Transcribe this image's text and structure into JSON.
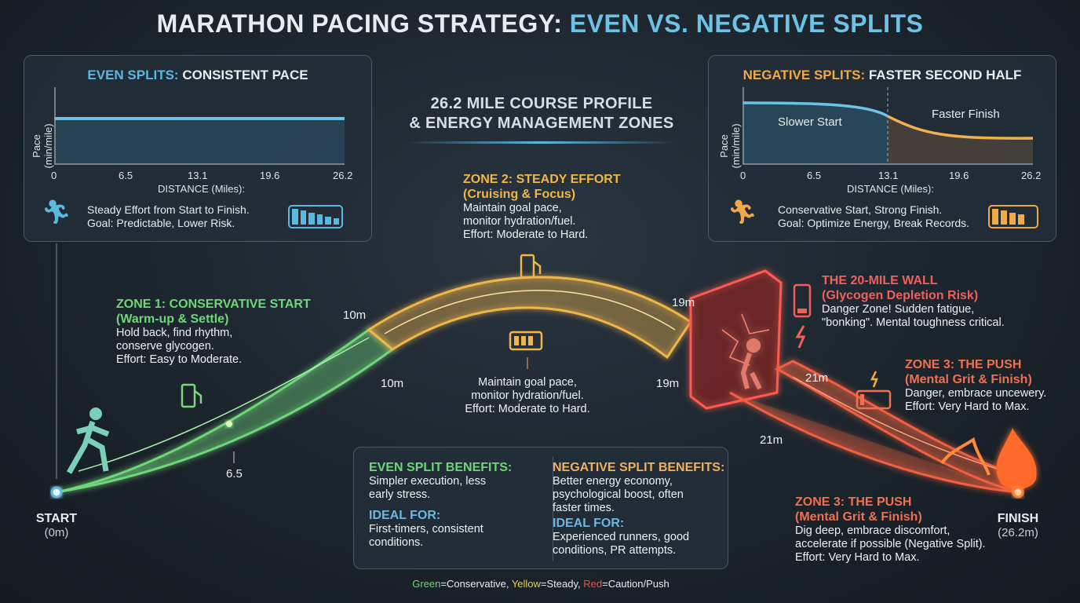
{
  "title": {
    "part1": "MARATHON PACING STRATEGY: ",
    "part2": "EVEN VS. NEGATIVE SPLITS"
  },
  "subtitle": {
    "line1": "26.2 MILE COURSE PROFILE",
    "line2": "& ENERGY MANAGEMENT ZONES"
  },
  "even_panel": {
    "title_accent": "EVEN SPLITS:",
    "title_rest": " CONSISTENT PACE",
    "ylabel": "Pace (min/mile)",
    "xlabel": "DISTANCE (Miles):",
    "ticks": [
      "0",
      "6.5",
      "13.1",
      "19.6",
      "26.2"
    ],
    "desc1": "Steady Effort from Start to Finish.",
    "desc2": "Goal: Predictable, Lower Risk.",
    "icons": [
      "runner-icon",
      "battery-icon"
    ],
    "accent": "#5bb8e0"
  },
  "negative_panel": {
    "title_accent": "NEGATIVE SPLITS:",
    "title_rest": " FASTER SECOND HALF",
    "ylabel": "Pace (min/mile)",
    "xlabel": "DISTANCE (Miles):",
    "ticks": [
      "0",
      "6.5",
      "13.1",
      "19.6",
      "26.2"
    ],
    "label_left": "Slower Start",
    "label_right": "Faster Finish",
    "desc1": "Conservative Start, Strong Finish.",
    "desc2": "Goal: Optimize Energy, Break Records.",
    "icons": [
      "runner-icon",
      "battery-icon"
    ],
    "accent": "#f0a848"
  },
  "zone1": {
    "title": "ZONE 1: CONSERVATIVE START",
    "subtitle": "(Warm-up & Settle)",
    "lines": [
      "Hold back, find rhythm,",
      "conserve glycogen.",
      "Effort: Easy to Moderate."
    ],
    "color": "#6fd67a"
  },
  "zone2": {
    "title": "ZONE 2: STEADY EFFORT",
    "subtitle": "(Cruising & Focus)",
    "lines": [
      "Maintain goal pace,",
      "monitor hydration/fuel.",
      "Effort: Moderate to Hard."
    ],
    "color": "#f0b648"
  },
  "zone2_lower": {
    "lines": [
      "Maintain goal pace,",
      "monitor hydration/fuel.",
      "Effort: Moderate to Hard."
    ]
  },
  "wall": {
    "title": "THE 20-MILE WALL",
    "subtitle": "(Glycogen Depletion Risk)",
    "lines": [
      "Danger Zone! Sudden fatigue,",
      "\"bonking\". Mental toughness critical."
    ],
    "color": "#f0605a"
  },
  "zone3_upper": {
    "title": "ZONE 3: THE PUSH",
    "subtitle": "(Mental Grit & Finish)",
    "lines": [
      "Danger, embrace uncewery.",
      "Effort: Very Hard to Max."
    ],
    "color": "#f07050"
  },
  "zone3_lower": {
    "title": "ZONE 3: THE PUSH",
    "subtitle": "(Mental Grit & Finish)",
    "lines": [
      "Dig deep, embrace discomfort,",
      "accelerate if possible (Negative Split).",
      "Effort: Very Hard to Max."
    ]
  },
  "markers": {
    "m65": "6.5",
    "m10a": "10m",
    "m10b": "10m",
    "m19a": "19m",
    "m19b": "19m",
    "m21a": "21m",
    "m21b": "21m"
  },
  "start": {
    "label": "START",
    "sub": "(0m)"
  },
  "finish": {
    "label": "FINISH",
    "sub": "(26.2m)"
  },
  "benefits": {
    "even_title": "EVEN SPLIT BENEFITS:",
    "even_text": [
      "Simpler execution, less",
      "early stress."
    ],
    "even_ideal": "IDEAL FOR:",
    "even_ideal_text": [
      "First-timers, consistent",
      "conditions."
    ],
    "neg_title": "NEGATIVE SPLIT BENEFITS:",
    "neg_text": [
      "Better energy economy,",
      "psychological boost, often",
      "faster times."
    ],
    "neg_ideal": "IDEAL FOR:",
    "neg_ideal_text": [
      "Experienced runners, good",
      "conditions, PR attempts."
    ]
  },
  "legend": {
    "green": "Green",
    "green_text": "=Conservative, ",
    "yellow": "Yellow",
    "yellow_text": "=Steady, ",
    "red": "Red",
    "red_text": "=Caution/Push"
  },
  "colors": {
    "green": "#6fd67a",
    "yellow": "#f0b648",
    "red": "#f0504a",
    "blue": "#5bb8e0",
    "orange": "#f0a848"
  }
}
